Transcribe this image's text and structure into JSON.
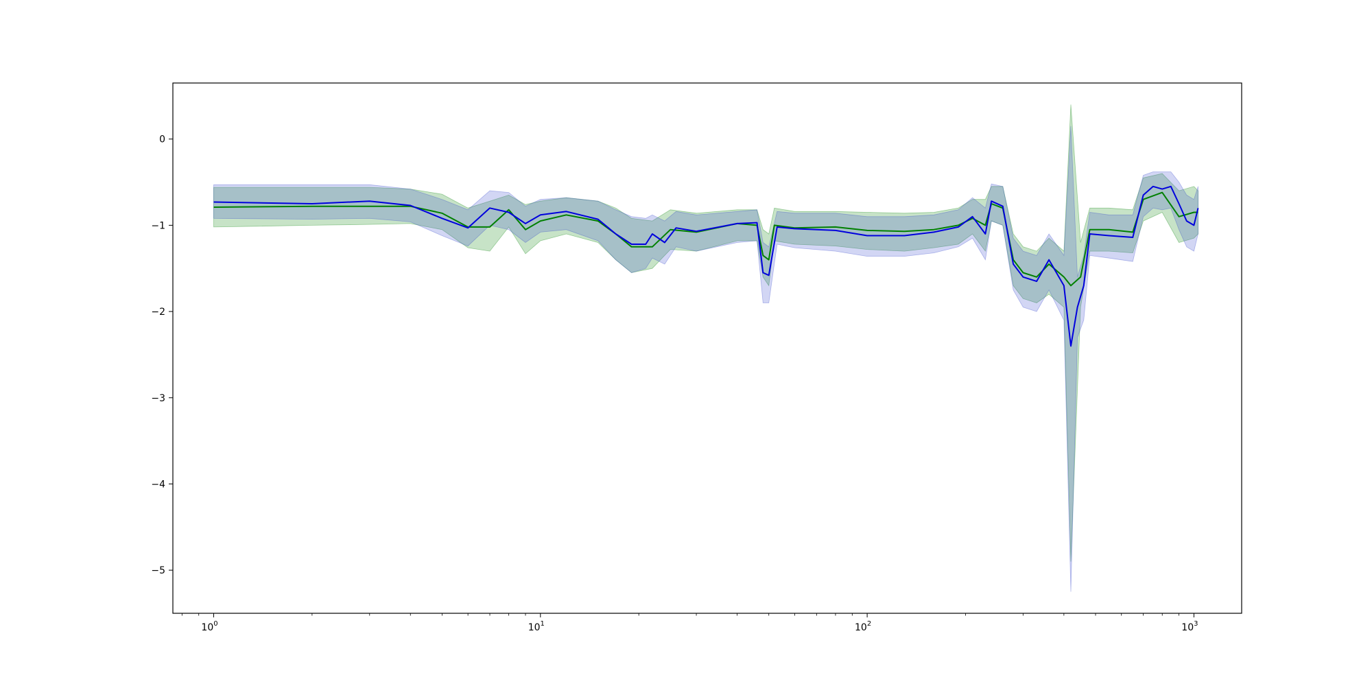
{
  "chart_data": {
    "type": "line",
    "title": "",
    "xlabel": "",
    "ylabel": "",
    "x_scale": "log",
    "xlim": [
      0.75,
      1400
    ],
    "ylim": [
      -5.5,
      0.65
    ],
    "grid": false,
    "legend": "none",
    "x_ticks": [
      {
        "value": 1,
        "base": "10",
        "exp": "0"
      },
      {
        "value": 10,
        "base": "10",
        "exp": "1"
      },
      {
        "value": 100,
        "base": "10",
        "exp": "2"
      },
      {
        "value": 1000,
        "base": "10",
        "exp": "3"
      }
    ],
    "y_ticks": [
      {
        "value": 0,
        "label": "0"
      },
      {
        "value": -1,
        "label": "−1"
      },
      {
        "value": -2,
        "label": "−2"
      },
      {
        "value": -3,
        "label": "−3"
      },
      {
        "value": -4,
        "label": "−4"
      },
      {
        "value": -5,
        "label": "−5"
      }
    ],
    "series": [
      {
        "color": "#008000",
        "band_color": "#008000",
        "points": [
          [
            1,
            -0.79,
            -1.02,
            -0.56
          ],
          [
            2,
            -0.78,
            -1.0,
            -0.56
          ],
          [
            3,
            -0.78,
            -0.99,
            -0.56
          ],
          [
            4,
            -0.78,
            -0.98,
            -0.58
          ],
          [
            5,
            -0.86,
            -1.05,
            -0.64
          ],
          [
            6,
            -1.02,
            -1.26,
            -0.8
          ],
          [
            7,
            -1.02,
            -1.3,
            -0.72
          ],
          [
            8,
            -0.82,
            -1.02,
            -0.65
          ],
          [
            9,
            -1.05,
            -1.33,
            -0.76
          ],
          [
            10,
            -0.95,
            -1.18,
            -0.72
          ],
          [
            12,
            -0.88,
            -1.1,
            -0.68
          ],
          [
            15,
            -0.95,
            -1.2,
            -0.72
          ],
          [
            17,
            -1.1,
            -1.4,
            -0.8
          ],
          [
            19,
            -1.25,
            -1.55,
            -0.92
          ],
          [
            22,
            -1.25,
            -1.5,
            -0.95
          ],
          [
            25,
            -1.05,
            -1.28,
            -0.82
          ],
          [
            30,
            -1.08,
            -1.3,
            -0.86
          ],
          [
            40,
            -0.98,
            -1.18,
            -0.82
          ],
          [
            46,
            -1.0,
            -1.18,
            -0.82
          ],
          [
            48,
            -1.35,
            -1.6,
            -1.05
          ],
          [
            50,
            -1.4,
            -1.7,
            -1.1
          ],
          [
            52,
            -1.0,
            -1.18,
            -0.8
          ],
          [
            60,
            -1.03,
            -1.22,
            -0.84
          ],
          [
            80,
            -1.02,
            -1.24,
            -0.84
          ],
          [
            100,
            -1.06,
            -1.28,
            -0.85
          ],
          [
            130,
            -1.07,
            -1.3,
            -0.86
          ],
          [
            160,
            -1.05,
            -1.26,
            -0.85
          ],
          [
            190,
            -1.0,
            -1.22,
            -0.8
          ],
          [
            210,
            -0.92,
            -1.1,
            -0.7
          ],
          [
            230,
            -1.0,
            -1.3,
            -0.7
          ],
          [
            240,
            -0.75,
            -0.95,
            -0.55
          ],
          [
            260,
            -0.8,
            -1.0,
            -0.55
          ],
          [
            280,
            -1.4,
            -1.7,
            -1.1
          ],
          [
            300,
            -1.55,
            -1.85,
            -1.25
          ],
          [
            330,
            -1.6,
            -1.9,
            -1.3
          ],
          [
            360,
            -1.45,
            -1.8,
            -1.15
          ],
          [
            400,
            -1.6,
            -1.95,
            -1.3
          ],
          [
            420,
            -1.7,
            -4.9,
            0.4
          ],
          [
            450,
            -1.6,
            -1.95,
            -1.2
          ],
          [
            480,
            -1.05,
            -1.3,
            -0.8
          ],
          [
            550,
            -1.05,
            -1.3,
            -0.8
          ],
          [
            650,
            -1.08,
            -1.32,
            -0.82
          ],
          [
            700,
            -0.7,
            -0.95,
            -0.45
          ],
          [
            800,
            -0.62,
            -0.85,
            -0.4
          ],
          [
            900,
            -0.9,
            -1.2,
            -0.6
          ],
          [
            1000,
            -0.85,
            -1.15,
            -0.55
          ],
          [
            1030,
            -0.85,
            -1.1,
            -0.6
          ]
        ]
      },
      {
        "color": "#0000dd",
        "band_color": "#3344cc",
        "points": [
          [
            1,
            -0.73,
            -0.92,
            -0.53
          ],
          [
            2,
            -0.75,
            -0.93,
            -0.53
          ],
          [
            3,
            -0.72,
            -0.92,
            -0.53
          ],
          [
            4,
            -0.77,
            -0.96,
            -0.58
          ],
          [
            5,
            -0.92,
            -1.12,
            -0.7
          ],
          [
            6,
            -1.03,
            -1.24,
            -0.82
          ],
          [
            7,
            -0.8,
            -1.0,
            -0.6
          ],
          [
            8,
            -0.85,
            -1.05,
            -0.62
          ],
          [
            9,
            -0.98,
            -1.2,
            -0.78
          ],
          [
            10,
            -0.88,
            -1.08,
            -0.7
          ],
          [
            12,
            -0.84,
            -1.05,
            -0.68
          ],
          [
            15,
            -0.93,
            -1.18,
            -0.72
          ],
          [
            17,
            -1.1,
            -1.4,
            -0.82
          ],
          [
            19,
            -1.22,
            -1.55,
            -0.9
          ],
          [
            21,
            -1.22,
            -1.5,
            -0.92
          ],
          [
            22,
            -1.1,
            -1.38,
            -0.88
          ],
          [
            24,
            -1.2,
            -1.45,
            -0.95
          ],
          [
            26,
            -1.03,
            -1.25,
            -0.84
          ],
          [
            30,
            -1.07,
            -1.3,
            -0.88
          ],
          [
            40,
            -0.98,
            -1.2,
            -0.84
          ],
          [
            46,
            -0.97,
            -1.18,
            -0.82
          ],
          [
            48,
            -1.55,
            -1.9,
            -1.2
          ],
          [
            50,
            -1.58,
            -1.9,
            -1.25
          ],
          [
            53,
            -1.02,
            -1.22,
            -0.84
          ],
          [
            60,
            -1.04,
            -1.26,
            -0.86
          ],
          [
            80,
            -1.06,
            -1.3,
            -0.86
          ],
          [
            100,
            -1.12,
            -1.36,
            -0.9
          ],
          [
            130,
            -1.12,
            -1.36,
            -0.9
          ],
          [
            160,
            -1.08,
            -1.32,
            -0.88
          ],
          [
            190,
            -1.02,
            -1.25,
            -0.82
          ],
          [
            210,
            -0.9,
            -1.15,
            -0.68
          ],
          [
            230,
            -1.1,
            -1.4,
            -0.8
          ],
          [
            240,
            -0.72,
            -0.95,
            -0.52
          ],
          [
            260,
            -0.78,
            -1.0,
            -0.55
          ],
          [
            280,
            -1.45,
            -1.75,
            -1.15
          ],
          [
            300,
            -1.6,
            -1.95,
            -1.3
          ],
          [
            330,
            -1.65,
            -2.0,
            -1.35
          ],
          [
            360,
            -1.4,
            -1.75,
            -1.1
          ],
          [
            400,
            -1.7,
            -2.1,
            -1.35
          ],
          [
            420,
            -2.4,
            -5.25,
            0.15
          ],
          [
            440,
            -1.95,
            -2.3,
            -1.6
          ],
          [
            460,
            -1.7,
            -2.1,
            -1.35
          ],
          [
            480,
            -1.1,
            -1.35,
            -0.85
          ],
          [
            550,
            -1.12,
            -1.38,
            -0.88
          ],
          [
            650,
            -1.14,
            -1.42,
            -0.88
          ],
          [
            700,
            -0.65,
            -0.9,
            -0.42
          ],
          [
            750,
            -0.55,
            -0.8,
            -0.38
          ],
          [
            800,
            -0.58,
            -0.82,
            -0.38
          ],
          [
            850,
            -0.55,
            -0.8,
            -0.38
          ],
          [
            900,
            -0.75,
            -1.05,
            -0.5
          ],
          [
            950,
            -0.95,
            -1.25,
            -0.65
          ],
          [
            1000,
            -1.0,
            -1.3,
            -0.7
          ],
          [
            1030,
            -0.8,
            -1.1,
            -0.55
          ]
        ]
      }
    ]
  }
}
